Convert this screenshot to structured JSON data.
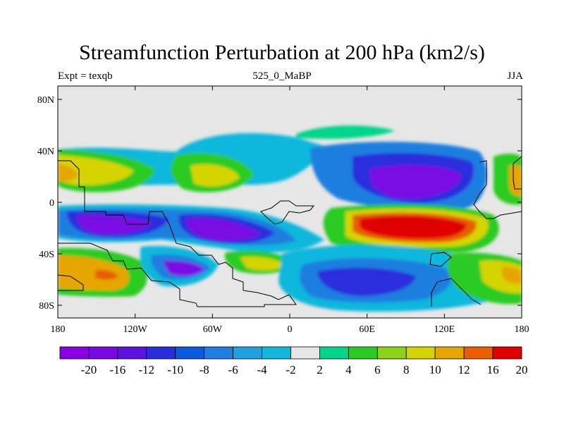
{
  "title": "Streamfunction Perturbation at 200 hPa (km2/s)",
  "left_string": "Expt = texqb",
  "center_string": "525_0_MaBP",
  "right_string": "JJA",
  "y_ticks": [
    "80N",
    "40N",
    "0",
    "40S",
    "80S"
  ],
  "x_ticks": [
    "180",
    "120W",
    "60W",
    "0",
    "60E",
    "120E",
    "180"
  ],
  "colorbar": {
    "labels": [
      "-20",
      "-16",
      "-12",
      "-10",
      "-8",
      "-6",
      "-4",
      "-2",
      "2",
      "4",
      "6",
      "8",
      "10",
      "12",
      "16",
      "20"
    ],
    "colors": [
      "#8A00E6",
      "#7A08E4",
      "#5C12E0",
      "#2A2DDD",
      "#0A59DE",
      "#1E7FE0",
      "#1FA0DF",
      "#10B8DC",
      "#E6E6E6",
      "#00D68A",
      "#2BCB23",
      "#8CD216",
      "#D5D400",
      "#E6A600",
      "#E85E00",
      "#E00000"
    ]
  },
  "colors": {
    "land_outline": "#000000",
    "background": "#E6E6E6"
  }
}
